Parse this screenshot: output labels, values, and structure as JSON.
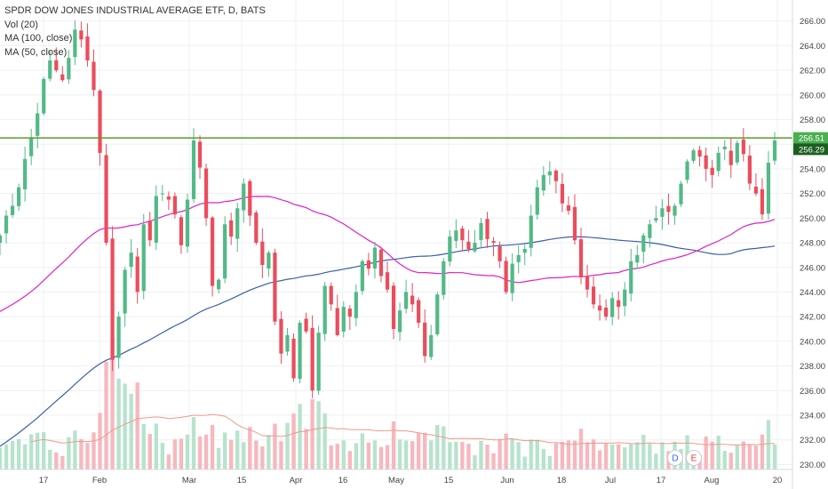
{
  "legend": {
    "title": "SPDR DOW JONES INDUSTRIAL AVERAGE ETF, D, BATS",
    "vol": "Vol (20)",
    "ma100": "MA (100, close)",
    "ma50": "MA (50, close)"
  },
  "colors": {
    "up": "#53b987",
    "down": "#eb4d5c",
    "vol_up": "#b7e3cd",
    "vol_down": "#f6b8be",
    "ma100": "#3a5ea6",
    "ma50": "#e020c8",
    "vol_ma": "#ef9a88",
    "hline": "#5a9b2a",
    "grid": "#eef0f3",
    "tag_green": "#4caf50",
    "tag_dark": "#1b5e20",
    "marker_d": "#2962ff",
    "marker_e": "#e53935"
  },
  "price_tags": {
    "level": "256.51",
    "last": "256.29"
  },
  "markers": [
    {
      "letter": "D"
    },
    {
      "letter": "E"
    }
  ],
  "chart_data": {
    "type": "candlestick",
    "title": "SPDR DOW JONES INDUSTRIAL AVERAGE ETF, D, BATS",
    "ylim": [
      229.6,
      267.2
    ],
    "y_ticks": [
      "266.00",
      "264.00",
      "262.00",
      "260.00",
      "258.00",
      "256.00",
      "254.00",
      "252.00",
      "250.00",
      "248.00",
      "246.00",
      "244.00",
      "242.00",
      "240.00",
      "238.00",
      "236.00",
      "234.00",
      "232.00",
      "230.00"
    ],
    "x_ticks": [
      "17",
      "Feb",
      "Mar",
      "15",
      "Apr",
      "16",
      "May",
      "15",
      "Jun",
      "18",
      "Jul",
      "17",
      "Aug",
      "20"
    ],
    "horizontal_line": 256.51,
    "last_price": 256.29,
    "close": [
      248.6,
      250.2,
      251.0,
      252.5,
      254.8,
      256.5,
      258.5,
      261.3,
      262.8,
      262.0,
      261.2,
      263.0,
      265.3,
      264.5,
      262.8,
      260.4,
      255.3,
      248.0,
      238.5,
      242.0,
      245.8,
      247.2,
      244.0,
      249.5,
      248.2,
      251.8,
      252.0,
      251.5,
      250.3,
      247.8,
      251.5,
      256.3,
      254.1,
      250.0,
      244.5,
      245.0,
      249.5,
      248.5,
      250.8,
      252.8,
      250.2,
      248.0,
      246.2,
      247.2,
      241.6,
      239.0,
      240.5,
      237.0,
      241.5,
      240.8,
      236.0,
      240.7,
      244.5,
      243.0,
      240.5,
      242.8,
      242.0,
      244.0,
      246.5,
      245.9,
      247.6,
      245.3,
      244.2,
      241.0,
      242.5,
      244.0,
      243.0,
      241.5,
      238.8,
      240.5,
      243.8,
      246.5,
      248.5,
      249.0,
      248.2,
      247.5,
      248.0,
      249.6,
      248.3,
      248.0,
      246.5,
      244.0,
      246.3,
      247.0,
      247.5,
      250.2,
      252.5,
      253.5,
      253.8,
      253.0,
      251.2,
      250.6,
      248.2,
      245.2,
      244.2,
      243.0,
      242.5,
      242.0,
      243.5,
      242.8,
      244.2,
      246.5,
      247.0,
      248.6,
      249.5,
      250.0,
      250.8,
      250.5,
      251.0,
      252.8,
      254.6,
      255.5,
      255.0,
      254.0,
      253.5,
      255.3,
      255.8,
      254.3,
      256.1,
      255.2,
      252.8,
      252.0,
      250.3,
      254.5,
      256.3
    ]
  },
  "volume_label": "Vol (20)"
}
